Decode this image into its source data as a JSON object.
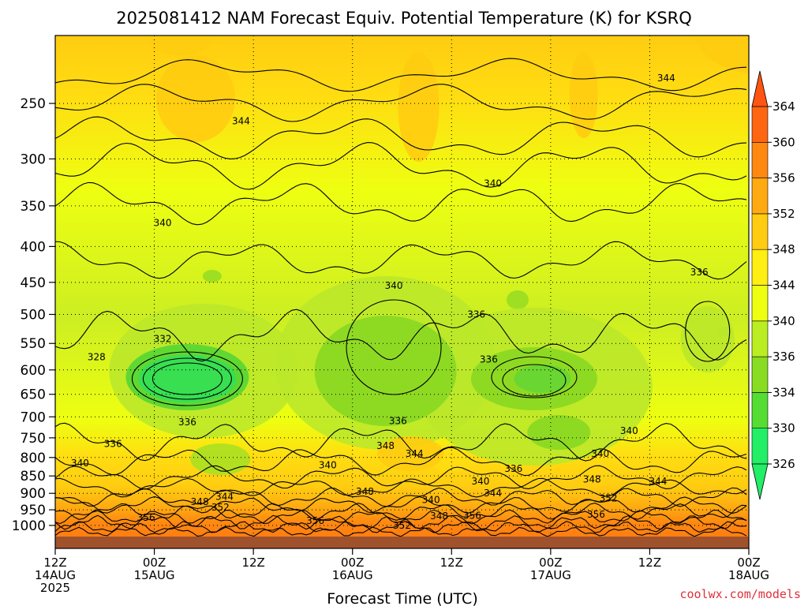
{
  "chart_data": {
    "type": "heatmap",
    "title": "2025081412 NAM Forecast Equiv. Potential Temperature (K) for KSRQ",
    "xlabel": "Forecast Time (UTC)",
    "ylabel": "",
    "y_scale": "log-pressure",
    "y_ticks": [
      250,
      300,
      350,
      400,
      450,
      500,
      550,
      600,
      650,
      700,
      750,
      800,
      850,
      900,
      950,
      1000
    ],
    "y_range_hpa": [
      1040,
      200
    ],
    "x_range_hours": [
      0,
      84
    ],
    "x_ticks": [
      {
        "hour": 0,
        "l1": "12Z",
        "l2": "14AUG",
        "l3": "2025"
      },
      {
        "hour": 12,
        "l1": "00Z",
        "l2": "15AUG",
        "l3": ""
      },
      {
        "hour": 24,
        "l1": "12Z",
        "l2": "",
        "l3": ""
      },
      {
        "hour": 36,
        "l1": "00Z",
        "l2": "16AUG",
        "l3": ""
      },
      {
        "hour": 48,
        "l1": "12Z",
        "l2": "",
        "l3": ""
      },
      {
        "hour": 60,
        "l1": "00Z",
        "l2": "17AUG",
        "l3": ""
      },
      {
        "hour": 72,
        "l1": "12Z",
        "l2": "",
        "l3": ""
      },
      {
        "hour": 84,
        "l1": "00Z",
        "l2": "18AUG",
        "l3": ""
      }
    ],
    "colorbar": {
      "levels": [
        326,
        330,
        334,
        336,
        340,
        344,
        348,
        352,
        356,
        360,
        364
      ],
      "colors": [
        "#22ee66",
        "#55dd33",
        "#88dd22",
        "#bbee22",
        "#eeff11",
        "#ffee11",
        "#ffcc11",
        "#ffaa11",
        "#ff8811",
        "#ff6611"
      ],
      "extend": "both"
    },
    "grid": true,
    "legend": "colorbar-right",
    "contour_interval_K": 2,
    "isotherm_labels": [
      {
        "hour": 22.5,
        "hpa": 265,
        "text": "344"
      },
      {
        "hour": 74,
        "hpa": 230,
        "text": "344"
      },
      {
        "hour": 53,
        "hpa": 325,
        "text": "340"
      },
      {
        "hour": 13,
        "hpa": 370,
        "text": "340"
      },
      {
        "hour": 41,
        "hpa": 455,
        "text": "340"
      },
      {
        "hour": 78,
        "hpa": 435,
        "text": "336"
      },
      {
        "hour": 51,
        "hpa": 500,
        "text": "336"
      },
      {
        "hour": 13,
        "hpa": 542,
        "text": "332"
      },
      {
        "hour": 5,
        "hpa": 575,
        "text": "328"
      },
      {
        "hour": 52.5,
        "hpa": 580,
        "text": "336"
      },
      {
        "hour": 16,
        "hpa": 712,
        "text": "336"
      },
      {
        "hour": 41.5,
        "hpa": 710,
        "text": "336"
      },
      {
        "hour": 7,
        "hpa": 765,
        "text": "336"
      },
      {
        "hour": 69.5,
        "hpa": 733,
        "text": "340"
      },
      {
        "hour": 3,
        "hpa": 815,
        "text": "340"
      },
      {
        "hour": 33,
        "hpa": 820,
        "text": "340"
      },
      {
        "hour": 66,
        "hpa": 790,
        "text": "340"
      },
      {
        "hour": 40,
        "hpa": 770,
        "text": "348"
      },
      {
        "hour": 43.5,
        "hpa": 790,
        "text": "344"
      },
      {
        "hour": 55.5,
        "hpa": 830,
        "text": "336"
      },
      {
        "hour": 51.5,
        "hpa": 865,
        "text": "340"
      },
      {
        "hour": 65,
        "hpa": 860,
        "text": "348"
      },
      {
        "hour": 73,
        "hpa": 865,
        "text": "344"
      },
      {
        "hour": 53,
        "hpa": 900,
        "text": "344"
      },
      {
        "hour": 37.5,
        "hpa": 895,
        "text": "348"
      },
      {
        "hour": 45.5,
        "hpa": 920,
        "text": "340"
      },
      {
        "hour": 20.5,
        "hpa": 910,
        "text": "344"
      },
      {
        "hour": 17.5,
        "hpa": 925,
        "text": "348"
      },
      {
        "hour": 20,
        "hpa": 942,
        "text": "352"
      },
      {
        "hour": 67,
        "hpa": 915,
        "text": "352"
      },
      {
        "hour": 11,
        "hpa": 975,
        "text": "356"
      },
      {
        "hour": 31.5,
        "hpa": 985,
        "text": "356"
      },
      {
        "hour": 46.5,
        "hpa": 970,
        "text": "348"
      },
      {
        "hour": 50.5,
        "hpa": 968,
        "text": "356"
      },
      {
        "hour": 42,
        "hpa": 1000,
        "text": "352"
      },
      {
        "hour": 65.5,
        "hpa": 965,
        "text": "356"
      }
    ]
  },
  "credit": "coolwx.com/models"
}
